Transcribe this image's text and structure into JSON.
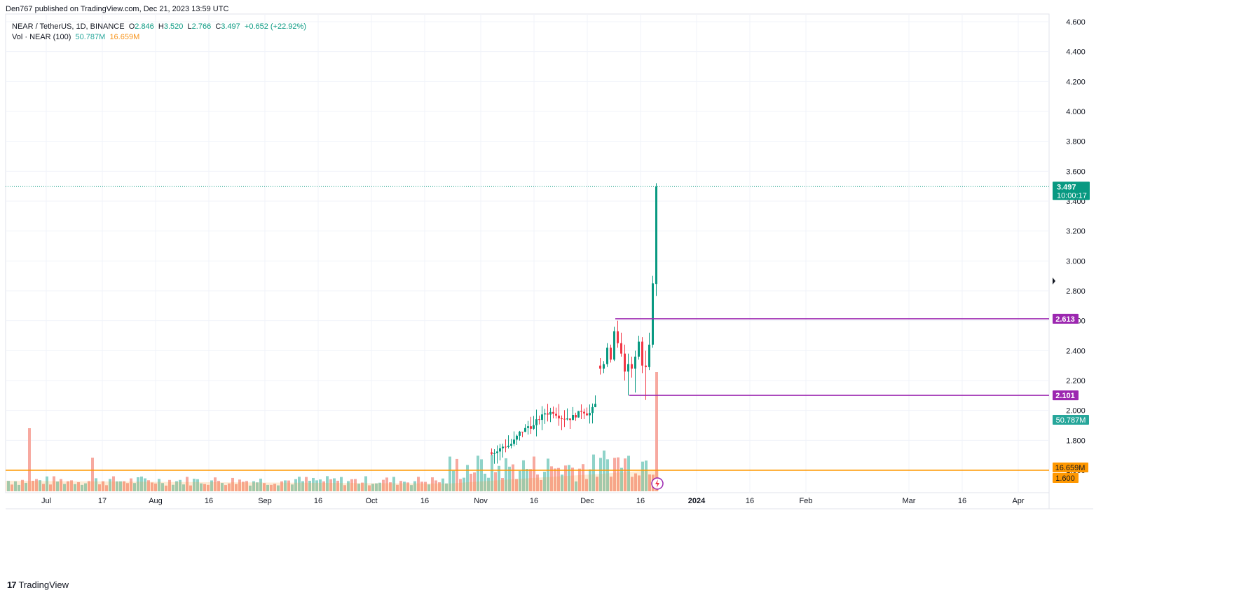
{
  "header": {
    "published": "Den767 published on TradingView.com, Dec 21, 2023 13:59 UTC"
  },
  "legend": {
    "symbol": "NEAR / TetherUS, 1D, BINANCE",
    "o_label": "O",
    "o": "2.846",
    "h_label": "H",
    "h": "3.520",
    "l_label": "L",
    "l": "2.766",
    "c_label": "C",
    "c": "3.497",
    "change": "+0.652 (+22.92%)",
    "vol_label": "Vol · NEAR (100)",
    "vol_value": "50.787M",
    "vol_ma": "16.659M"
  },
  "footer": {
    "logo_mark": "17",
    "logo_text": "TradingView"
  },
  "colors": {
    "up": "#089981",
    "down": "#f23645",
    "up_vol": "#8fd3c9",
    "down_vol": "#f7a9a0",
    "level": "#9c27b0",
    "orange": "#ff9800",
    "grid": "#f0f3fa"
  },
  "chart_data": {
    "type": "candlestick",
    "symbol": "NEAR / TetherUS",
    "interval": "1D",
    "exchange": "BINANCE",
    "y_axis": {
      "ticks": [
        "1.600",
        "1.800",
        "2.000",
        "2.200",
        "2.400",
        "2.600",
        "2.800",
        "3.000",
        "3.200",
        "3.400",
        "3.600",
        "3.800",
        "4.000",
        "4.200",
        "4.400",
        "4.600"
      ],
      "range": [
        1.5,
        4.65
      ]
    },
    "x_axis": {
      "ticks": [
        "Jul",
        "17",
        "Aug",
        "16",
        "Sep",
        "16",
        "Oct",
        "16",
        "Nov",
        "16",
        "Dec",
        "16",
        "2024",
        "16",
        "Feb",
        "Mar",
        "16",
        "Apr"
      ]
    },
    "last_price": {
      "value": 3.497,
      "label": "3.497",
      "countdown": "10:00:17"
    },
    "levels": [
      {
        "label": "2.613",
        "value": 2.613
      },
      {
        "label": "2.101",
        "value": 2.101
      }
    ],
    "volume_labels": {
      "volume": "50.787M",
      "volume_ma": "16.659M",
      "ma_price": "1.600"
    },
    "candles": [
      {
        "o": 2.3,
        "h": 2.35,
        "l": 2.24,
        "c": 2.28
      },
      {
        "o": 2.28,
        "h": 2.33,
        "l": 2.25,
        "c": 2.31
      },
      {
        "o": 2.31,
        "h": 2.45,
        "l": 2.29,
        "c": 2.42
      },
      {
        "o": 2.42,
        "h": 2.44,
        "l": 2.32,
        "c": 2.34
      },
      {
        "o": 2.34,
        "h": 2.56,
        "l": 2.33,
        "c": 2.53
      },
      {
        "o": 2.53,
        "h": 2.6,
        "l": 2.42,
        "c": 2.45
      },
      {
        "o": 2.45,
        "h": 2.52,
        "l": 2.36,
        "c": 2.38
      },
      {
        "o": 2.38,
        "h": 2.44,
        "l": 2.2,
        "c": 2.26
      },
      {
        "o": 2.26,
        "h": 2.38,
        "l": 2.1,
        "c": 2.31
      },
      {
        "o": 2.31,
        "h": 2.36,
        "l": 2.22,
        "c": 2.28
      },
      {
        "o": 2.28,
        "h": 2.4,
        "l": 2.12,
        "c": 2.36
      },
      {
        "o": 2.36,
        "h": 2.5,
        "l": 2.34,
        "c": 2.46
      },
      {
        "o": 2.46,
        "h": 2.49,
        "l": 2.25,
        "c": 2.3
      },
      {
        "o": 2.3,
        "h": 2.4,
        "l": 2.07,
        "c": 2.29
      },
      {
        "o": 2.29,
        "h": 2.52,
        "l": 2.27,
        "c": 2.44
      },
      {
        "o": 2.44,
        "h": 2.9,
        "l": 2.42,
        "c": 2.85
      },
      {
        "o": 2.846,
        "h": 3.52,
        "l": 2.766,
        "c": 3.497
      }
    ]
  }
}
